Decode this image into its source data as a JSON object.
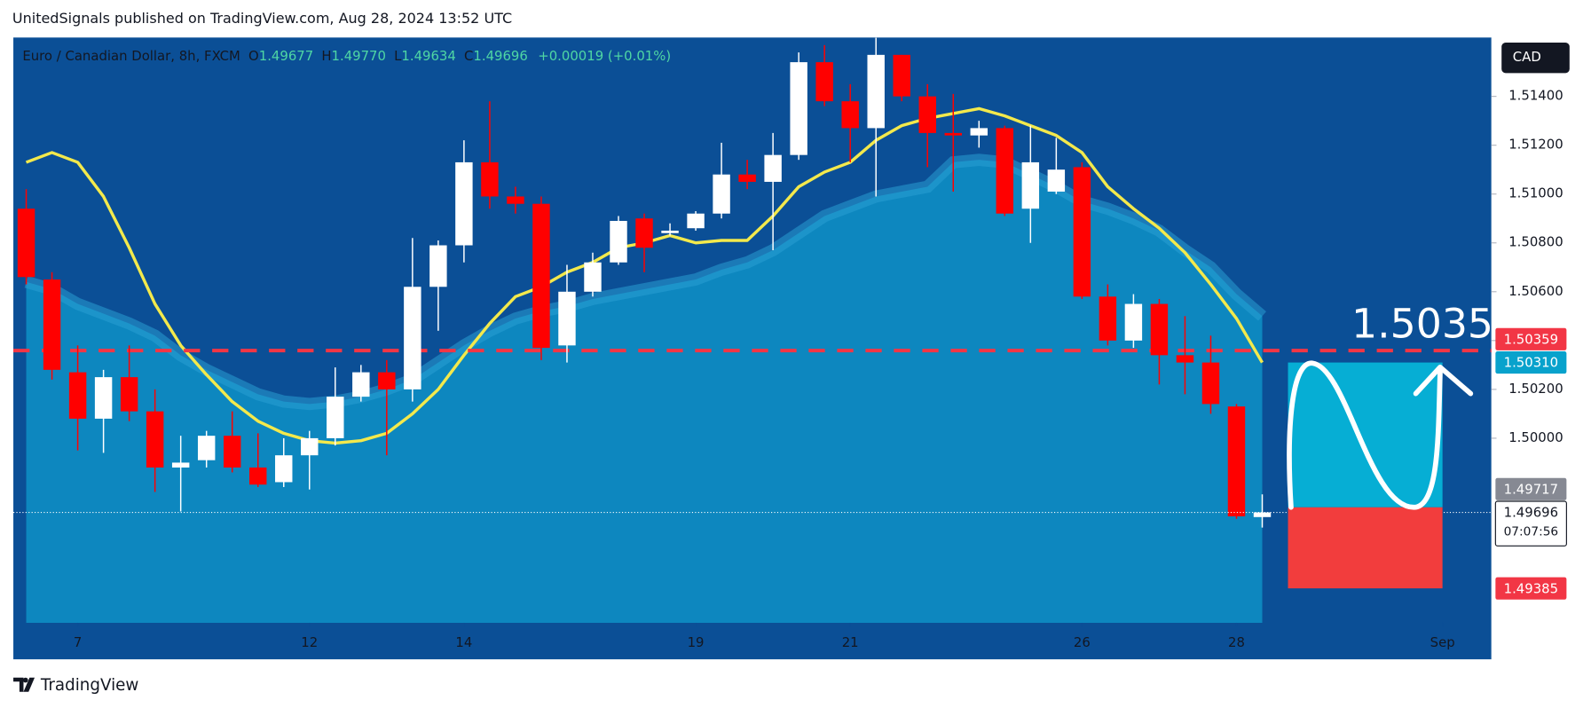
{
  "published": "UnitedSignals published on TradingView.com, Aug 28, 2024 13:52 UTC",
  "footer": "TradingView",
  "currency": "CAD",
  "chart_data": {
    "type": "candlestick",
    "title": "Euro / Canadian Dollar, 8h, FXCM",
    "ohlc_header": {
      "o_label": "O",
      "o": "1.49677",
      "h_label": "H",
      "h": "1.49770",
      "l_label": "L",
      "l": "1.49634",
      "c_label": "C",
      "c": "1.49696",
      "change": "+0.00019 (+0.01%)"
    },
    "x": [
      0,
      1,
      2,
      3,
      4,
      5,
      6,
      7,
      8,
      9,
      10,
      11,
      12,
      13,
      14,
      15,
      16,
      17,
      18,
      19,
      20,
      21,
      22,
      23,
      24,
      25,
      26,
      27,
      28,
      29,
      30,
      31,
      32,
      33,
      34,
      35,
      36,
      37,
      38,
      39,
      40,
      41,
      42,
      43,
      44,
      45,
      46,
      47,
      48
    ],
    "candles": {
      "up_color": "#ffffff",
      "down_color": "#ff0000",
      "open": [
        1.5094,
        1.5065,
        1.5027,
        1.5008,
        1.5025,
        1.5011,
        1.4988,
        1.4991,
        1.5001,
        1.4988,
        1.4982,
        1.4993,
        1.5,
        1.5017,
        1.5027,
        1.502,
        1.5062,
        1.5079,
        1.5113,
        1.5099,
        1.5096,
        1.5038,
        1.506,
        1.5072,
        1.509,
        1.5084,
        1.5086,
        1.5092,
        1.5108,
        1.5105,
        1.5116,
        1.5154,
        1.5138,
        1.5127,
        1.5157,
        1.514,
        1.5125,
        1.5124,
        1.5127,
        1.5094,
        1.5101,
        1.5111,
        1.5058,
        1.504,
        1.5055,
        1.5034,
        1.5031,
        1.5013,
        1.49677
      ],
      "high": [
        1.5102,
        1.5068,
        1.5038,
        1.5028,
        1.5038,
        1.502,
        1.5001,
        1.5003,
        1.5011,
        1.5002,
        1.5,
        1.5003,
        1.5029,
        1.503,
        1.5032,
        1.5082,
        1.5081,
        1.5122,
        1.5138,
        1.5103,
        1.5099,
        1.5071,
        1.5076,
        1.5091,
        1.5092,
        1.5088,
        1.5093,
        1.5121,
        1.5114,
        1.5125,
        1.5158,
        1.5161,
        1.5145,
        1.5164,
        1.5157,
        1.5145,
        1.5141,
        1.513,
        1.5128,
        1.5128,
        1.5123,
        1.5113,
        1.5063,
        1.5059,
        1.5057,
        1.505,
        1.5042,
        1.5014,
        1.4977
      ],
      "low": [
        1.5063,
        1.5024,
        1.4995,
        1.4994,
        1.5007,
        1.4978,
        1.497,
        1.4988,
        1.4986,
        1.498,
        1.498,
        1.4979,
        1.4997,
        1.5015,
        1.4993,
        1.5015,
        1.5044,
        1.5072,
        1.5094,
        1.5092,
        1.5032,
        1.5031,
        1.5058,
        1.5071,
        1.5068,
        1.5083,
        1.5085,
        1.509,
        1.5102,
        1.5077,
        1.5114,
        1.5136,
        1.5113,
        1.5099,
        1.5138,
        1.5111,
        1.5101,
        1.5119,
        1.5091,
        1.508,
        1.51,
        1.5057,
        1.5038,
        1.5037,
        1.5022,
        1.5018,
        1.501,
        1.4967,
        1.49634
      ],
      "close": [
        1.5066,
        1.5028,
        1.5008,
        1.5025,
        1.5011,
        1.4988,
        1.499,
        1.5001,
        1.4988,
        1.4981,
        1.4993,
        1.5,
        1.5017,
        1.5027,
        1.502,
        1.5062,
        1.5079,
        1.5113,
        1.5099,
        1.5096,
        1.5037,
        1.506,
        1.5072,
        1.5089,
        1.5078,
        1.5085,
        1.5092,
        1.5108,
        1.5105,
        1.5116,
        1.5154,
        1.5138,
        1.5127,
        1.5157,
        1.514,
        1.5125,
        1.5124,
        1.5127,
        1.5092,
        1.5113,
        1.511,
        1.5058,
        1.504,
        1.5055,
        1.5034,
        1.5031,
        1.5014,
        1.4968,
        1.49696
      ]
    },
    "ma": {
      "color": "#f3e94c",
      "values": [
        1.5113,
        1.5117,
        1.5113,
        1.5099,
        1.5078,
        1.5055,
        1.5038,
        1.5026,
        1.5015,
        1.5007,
        1.5002,
        1.4999,
        1.4998,
        1.4999,
        1.5002,
        1.501,
        1.502,
        1.5034,
        1.5047,
        1.5058,
        1.5062,
        1.5068,
        1.5072,
        1.5078,
        1.508,
        1.5083,
        1.508,
        1.5081,
        1.5081,
        1.5091,
        1.5103,
        1.5109,
        1.5113,
        1.5122,
        1.5128,
        1.5131,
        1.5133,
        1.5135,
        1.5132,
        1.5128,
        1.5124,
        1.5117,
        1.5103,
        1.5094,
        1.5086,
        1.5076,
        1.5063,
        1.5049,
        1.5031
      ]
    },
    "band": {
      "color": "#0d87bf",
      "edge_color": "#2a9fd4",
      "values": [
        1.5064,
        1.5061,
        1.5055,
        1.5051,
        1.5047,
        1.5042,
        1.5034,
        1.5028,
        1.5023,
        1.5018,
        1.5015,
        1.5014,
        1.5015,
        1.5017,
        1.502,
        1.5024,
        1.5031,
        1.5038,
        1.5044,
        1.5049,
        1.5052,
        1.5054,
        1.5057,
        1.5059,
        1.5061,
        1.5063,
        1.5065,
        1.5069,
        1.5072,
        1.5077,
        1.5084,
        1.5091,
        1.5095,
        1.5099,
        1.5101,
        1.5103,
        1.5113,
        1.5114,
        1.5113,
        1.5108,
        1.5103,
        1.5097,
        1.5094,
        1.509,
        1.5085,
        1.5077,
        1.507,
        1.5059,
        1.505
      ]
    },
    "xlim": [
      -0.5,
      56.9
    ],
    "xticks": [
      {
        "value": 2,
        "label": "7"
      },
      {
        "value": 11,
        "label": "12"
      },
      {
        "value": 17,
        "label": "14"
      },
      {
        "value": 26,
        "label": "19"
      },
      {
        "value": 32,
        "label": "21"
      },
      {
        "value": 41,
        "label": "26"
      },
      {
        "value": 47,
        "label": "28"
      },
      {
        "value": 55,
        "label": "Sep"
      }
    ],
    "ylim": [
      1.49244,
      1.51641
    ],
    "yticks": [
      {
        "value": 1.5,
        "label": "1.50000"
      },
      {
        "value": 1.502,
        "label": "1.50200"
      },
      {
        "value": 1.504,
        "label": "1.50400"
      },
      {
        "value": 1.506,
        "label": "1.50600"
      },
      {
        "value": 1.508,
        "label": "1.50800"
      },
      {
        "value": 1.51,
        "label": "1.51000"
      },
      {
        "value": 1.512,
        "label": "1.51200"
      },
      {
        "value": 1.514,
        "label": "1.51400"
      }
    ],
    "price_labels": [
      {
        "value": 1.50359,
        "label": "1.50359",
        "color": "#f23645"
      },
      {
        "value": 1.5031,
        "label": "1.50310",
        "color": "#08a2cc"
      },
      {
        "value": 1.49717,
        "label": "1.49717",
        "color": "#868993"
      },
      {
        "value": 1.49385,
        "label": "1.49385",
        "color": "#f23645"
      }
    ],
    "current": {
      "value": 1.49696,
      "label": "1.49696",
      "countdown": "07:07:56"
    },
    "hline": {
      "price_label": 0,
      "color": "#f23645"
    },
    "position": {
      "start": 49,
      "end": 55,
      "target": 1,
      "entry": 2,
      "stop": 3,
      "profit_color": "#06aed4",
      "loss_color": "#f23d3d"
    },
    "annotation": "1.5035"
  }
}
